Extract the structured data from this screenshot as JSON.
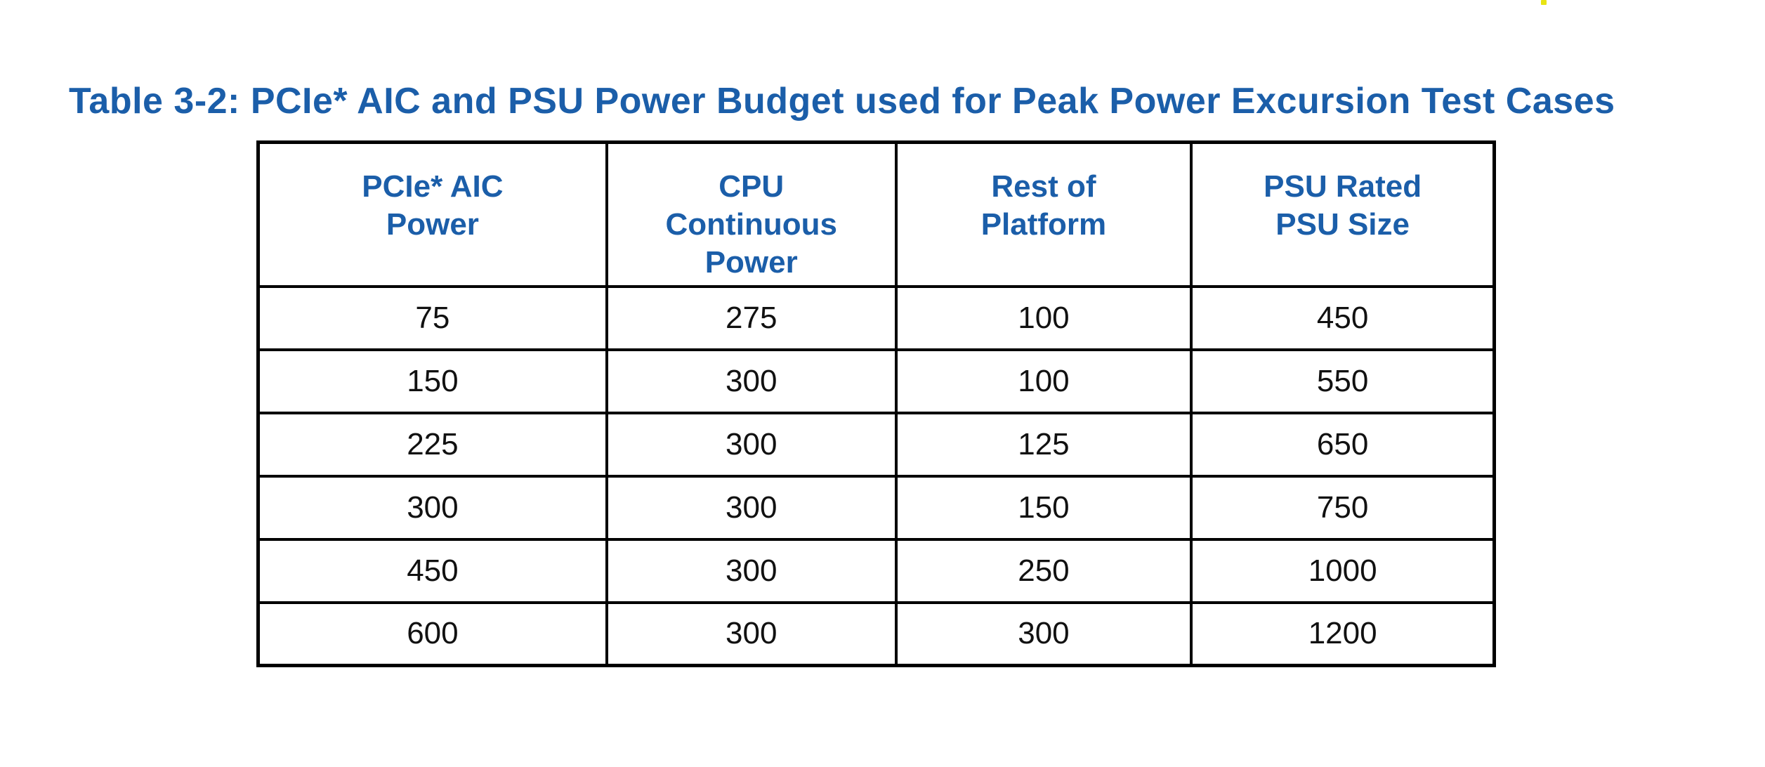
{
  "colors": {
    "heading_blue": "#1b5ea9",
    "table_border": "#000000",
    "body_text": "#111111",
    "stray_mark_yellow": "#e8e414",
    "page_background": "#ffffff"
  },
  "title": {
    "text": "Table 3-2: PCIe* AIC and PSU Power Budget used for Peak Power Excursion Test Cases"
  },
  "table": {
    "columns": [
      {
        "id": "pcie-aic-power",
        "label": "PCIe* AIC Power",
        "lines": [
          "PCIe* AIC",
          "Power"
        ],
        "width_pct": 28.2
      },
      {
        "id": "cpu-continuous-power",
        "label": "CPU Continuous Power",
        "lines": [
          "CPU",
          "Continuous",
          "Power"
        ],
        "width_pct": 23.4
      },
      {
        "id": "rest-of-platform",
        "label": "Rest of Platform",
        "lines": [
          "Rest of",
          "Platform"
        ],
        "width_pct": 23.9
      },
      {
        "id": "psu-rated-psu-size",
        "label": "PSU Rated PSU Size",
        "lines": [
          "PSU Rated",
          "PSU Size"
        ],
        "width_pct": 24.5
      }
    ],
    "rows": [
      [
        "75",
        "275",
        "100",
        "450"
      ],
      [
        "150",
        "300",
        "100",
        "550"
      ],
      [
        "225",
        "300",
        "125",
        "650"
      ],
      [
        "300",
        "300",
        "150",
        "750"
      ],
      [
        "450",
        "300",
        "250",
        "1000"
      ],
      [
        "600",
        "300",
        "300",
        "1200"
      ]
    ]
  }
}
